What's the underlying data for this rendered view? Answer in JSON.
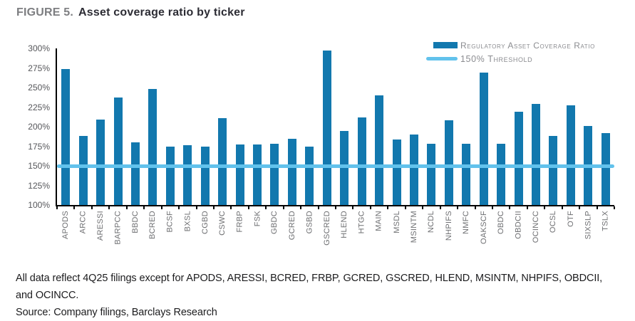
{
  "figure": {
    "label": "FIGURE 5.",
    "title": "Asset coverage ratio by ticker"
  },
  "legend": [
    {
      "label": "Regulatory Asset Coverage Ratio",
      "swatch": "bar-swatch"
    },
    {
      "label": "150% Threshold",
      "swatch": "line-swatch"
    }
  ],
  "colors": {
    "bar": "#1278AE",
    "threshold": "#62C2EC",
    "axis": "#000000"
  },
  "chart_data": {
    "type": "bar",
    "title": "Asset coverage ratio by ticker",
    "units": "%",
    "categories": [
      "APODS",
      "ARCC",
      "ARESSI",
      "BARPCC",
      "BBDC",
      "BCRED",
      "BCSF",
      "BXSL",
      "CGBD",
      "CSWC",
      "FRBP",
      "FSK",
      "GBDC",
      "GCRED",
      "GSBD",
      "GSCRED",
      "HLEND",
      "HTGC",
      "MAIN",
      "MSDL",
      "MSINTM",
      "NCDL",
      "NHPIFS",
      "NMFC",
      "OAKSCF",
      "OBDC",
      "OBDCII",
      "OCINCC",
      "OCSL",
      "OTF",
      "SIXSLP",
      "TSLX"
    ],
    "series": [
      {
        "name": "Regulatory Asset Coverage Ratio",
        "values": [
          274,
          188,
          209,
          237,
          180,
          248,
          175,
          176,
          175,
          211,
          177,
          177,
          178,
          185,
          175,
          297,
          195,
          212,
          240,
          184,
          190,
          178,
          208,
          178,
          269,
          178,
          219,
          229,
          188,
          227,
          201,
          192
        ]
      }
    ],
    "threshold": {
      "label": "150% Threshold",
      "value": 150
    },
    "xlabel": "",
    "ylabel": "",
    "ylim": [
      100,
      300
    ],
    "ytick_values": [
      100,
      125,
      150,
      175,
      200,
      225,
      250,
      275,
      300
    ],
    "ytick_labels": [
      "100%",
      "125%",
      "150%",
      "175%",
      "200%",
      "225%",
      "250%",
      "275%",
      "300%"
    ],
    "grid": false,
    "legend_position": "top-right"
  },
  "footnote": {
    "line1": "All data reflect 4Q25 filings except for APODS, ARESSI, BCRED, FRBP, GCRED, GSCRED, HLEND, MSINTM, NHPIFS, OBDCII,",
    "line2": "and OCINCC.",
    "source": "Source: Company filings, Barclays Research"
  }
}
